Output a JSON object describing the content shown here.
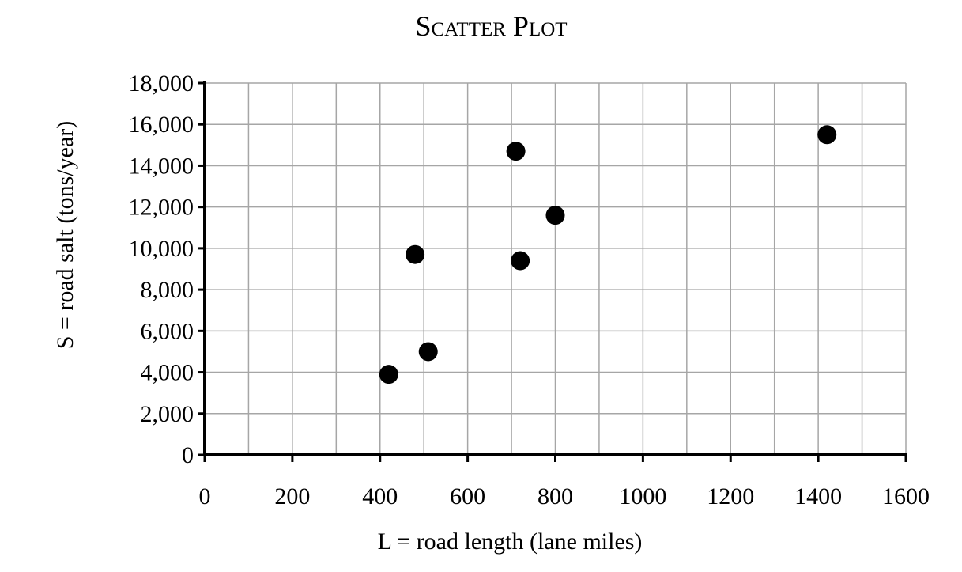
{
  "chart_data": {
    "type": "scatter",
    "title": "Scatter Plot",
    "xlabel": "L = road length (lane miles)",
    "ylabel": "S = road salt (tons/year)",
    "xlim": [
      0,
      1600
    ],
    "ylim": [
      0,
      18000
    ],
    "x_ticks": [
      "0",
      "200",
      "400",
      "600",
      "800",
      "1000",
      "1200",
      "1400",
      "1600"
    ],
    "y_ticks": [
      "0",
      "2,000",
      "4,000",
      "6,000",
      "8,000",
      "10,000",
      "12,000",
      "14,000",
      "16,000",
      "18,000"
    ],
    "grid": true,
    "series": [
      {
        "points": [
          {
            "x": 420,
            "y": 3900
          },
          {
            "x": 510,
            "y": 5000
          },
          {
            "x": 480,
            "y": 9700
          },
          {
            "x": 720,
            "y": 9400
          },
          {
            "x": 710,
            "y": 14700
          },
          {
            "x": 800,
            "y": 11600
          },
          {
            "x": 1420,
            "y": 15500
          }
        ]
      }
    ],
    "colors": {
      "marker": "#000000",
      "grid": "#a6a6a6",
      "axis": "#000000"
    }
  }
}
